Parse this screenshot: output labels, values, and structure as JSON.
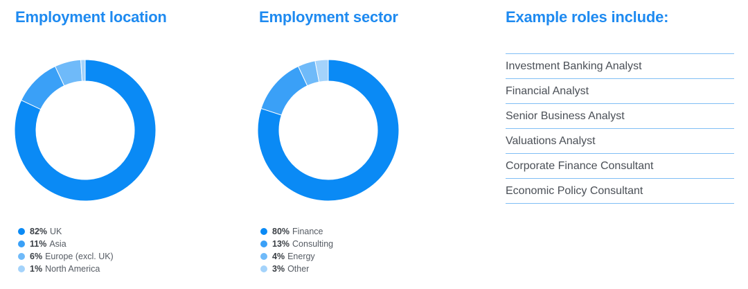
{
  "location": {
    "title": "Employment location"
  },
  "sector": {
    "title": "Employment sector"
  },
  "roles": {
    "title": "Example roles include:",
    "items": [
      "Investment Banking Analyst",
      "Financial Analyst",
      "Senior Business Analyst",
      "Valuations Analyst",
      "Corporate Finance Consultant",
      "Economic Policy Consultant"
    ]
  },
  "chart_data": [
    {
      "type": "pie",
      "title": "Employment location",
      "categories": [
        "UK",
        "Asia",
        "Europe (excl. UK)",
        "North America"
      ],
      "values": [
        82,
        11,
        6,
        1
      ],
      "value_labels": [
        "82%",
        "11%",
        "6%",
        "1%"
      ],
      "colors": [
        "#0a8af5",
        "#3aa0f7",
        "#6fbaf9",
        "#a4d3fb"
      ],
      "legend": "bottom-left"
    },
    {
      "type": "pie",
      "title": "Employment sector",
      "categories": [
        "Finance",
        "Consulting",
        "Energy",
        "Other"
      ],
      "values": [
        80,
        13,
        4,
        3
      ],
      "value_labels": [
        "80%",
        "13%",
        "4%",
        "3%"
      ],
      "colors": [
        "#0a8af5",
        "#3aa0f7",
        "#6fbaf9",
        "#a4d3fb"
      ],
      "legend": "bottom-left"
    }
  ]
}
